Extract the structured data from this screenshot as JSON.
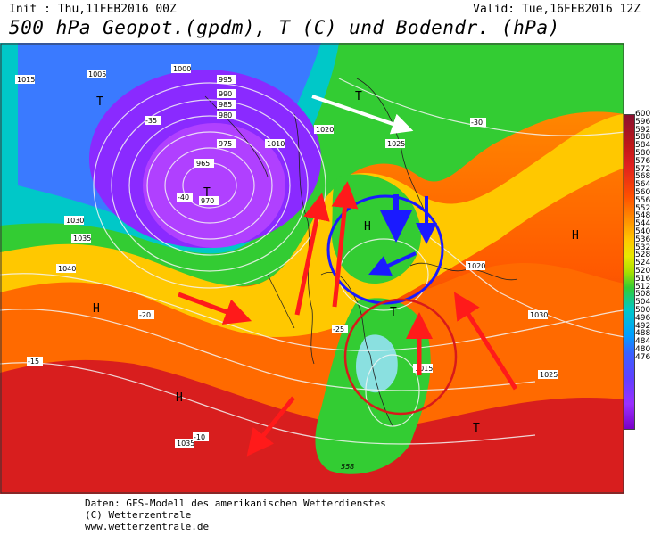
{
  "header": {
    "init": "Init : Thu,11FEB2016 00Z",
    "valid": "Valid: Tue,16FEB2016 12Z",
    "title": "500 hPa Geopot.(gpdm), T (C) und Bodendr. (hPa)"
  },
  "legend": {
    "values": [
      "600",
      "596",
      "592",
      "588",
      "584",
      "580",
      "576",
      "572",
      "568",
      "564",
      "560",
      "556",
      "552",
      "548",
      "544",
      "540",
      "536",
      "532",
      "528",
      "524",
      "520",
      "516",
      "512",
      "508",
      "504",
      "500",
      "496",
      "492",
      "488",
      "484",
      "480",
      "476"
    ]
  },
  "map_labels": {
    "H": "H",
    "T": "T",
    "isobars": [
      "1015",
      "1005",
      "1000",
      "995",
      "990",
      "985",
      "980",
      "975",
      "970",
      "965",
      "1010",
      "1020",
      "1025",
      "1030",
      "1035",
      "1040",
      "1015",
      "1020",
      "1025",
      "1030",
      "1035"
    ],
    "temps": [
      "-35",
      "-40",
      "-30",
      "-25",
      "-20",
      "-15",
      "-10"
    ],
    "contour_558": "558"
  },
  "footer": {
    "line1": "Daten: GFS-Modell des amerikanischen Wetterdienstes",
    "line2": "(C) Wetterzentrale",
    "line3": "www.wetterzentrale.de"
  },
  "colors": {
    "red_arrow": "#ff1a1a",
    "blue_circle": "#1a1aff",
    "red_circle": "#d81a1a",
    "white_arrow": "#ffffff"
  }
}
